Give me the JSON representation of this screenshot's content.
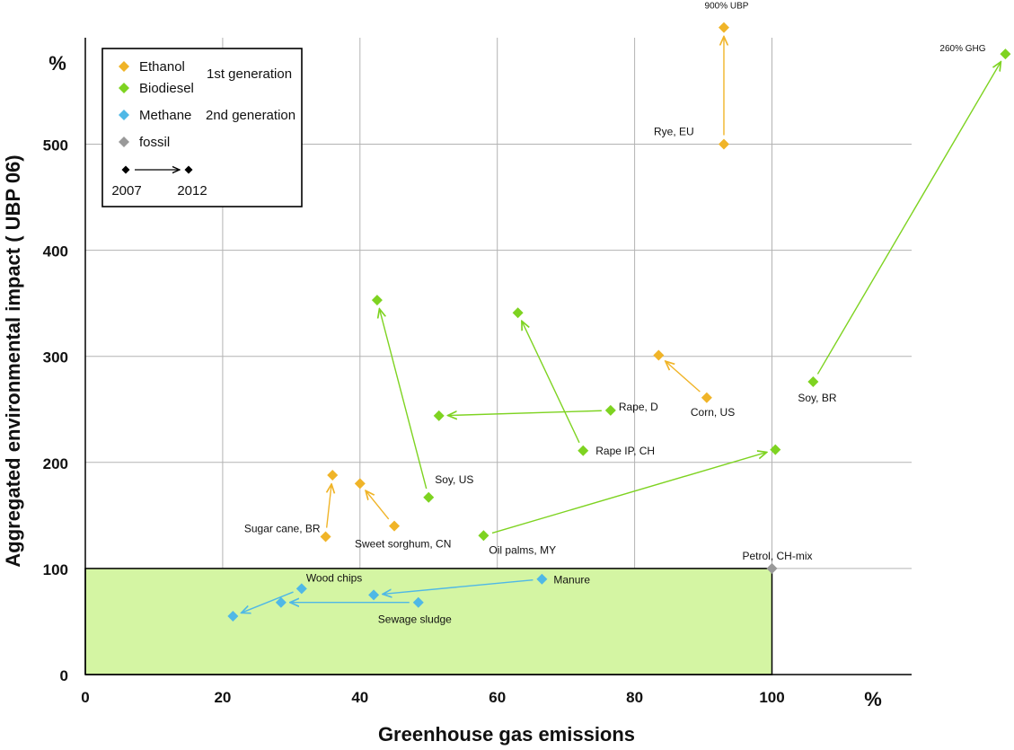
{
  "chart_data": {
    "type": "scatter",
    "xlabel": "Greenhouse gas emissions",
    "ylabel": "Aggregated environmental impact ( UBP 06)",
    "x_unit": "%",
    "y_unit": "%",
    "xlim": [
      0,
      120
    ],
    "ylim": [
      0,
      600
    ],
    "x_ticks": [
      "0",
      "20",
      "40",
      "60",
      "80",
      "100"
    ],
    "y_ticks": [
      "0",
      "100",
      "200",
      "300",
      "400",
      "500"
    ],
    "grid": true,
    "legend": {
      "position": "top-left",
      "entries": [
        {
          "name": "Ethanol",
          "color": "#f0b428"
        },
        {
          "name": "Biodiesel",
          "color": "#7ed321"
        },
        {
          "name": "Methane",
          "color": "#4fb8e6"
        },
        {
          "name": "fossil",
          "color": "#999999"
        }
      ],
      "groups": [
        "1st generation",
        "2nd generation"
      ],
      "arrow_from": "2007",
      "arrow_to": "2012"
    },
    "shaded_region": {
      "x": [
        0,
        100
      ],
      "y": [
        0,
        100
      ],
      "color": "#d4f5a3"
    },
    "series": [
      {
        "name": "Ethanol",
        "color": "#f0b428",
        "changes": [
          {
            "label": "Rye, EU",
            "from": [
              93,
              500
            ],
            "to": [
              93,
              610
            ],
            "annotation": "900% UBP"
          },
          {
            "label": "Corn, US",
            "from": [
              90.5,
              261
            ],
            "to": [
              83.5,
              301
            ]
          },
          {
            "label": "Sugar cane, BR",
            "from": [
              35,
              130
            ],
            "to": [
              36,
              188
            ]
          },
          {
            "label": "Sweet sorghum, CN",
            "from": [
              45,
              140
            ],
            "to": [
              40,
              180
            ]
          }
        ]
      },
      {
        "name": "Biodiesel",
        "color": "#7ed321",
        "changes": [
          {
            "label": "Soy, BR",
            "from": [
              106,
              276
            ],
            "to": [
              134,
              585
            ],
            "annotation": "260% GHG"
          },
          {
            "label": "Soy, US",
            "from": [
              50,
              167
            ],
            "to": [
              42.5,
              353
            ]
          },
          {
            "label": "Rape IP, CH",
            "from": [
              72.5,
              211
            ],
            "to": [
              63,
              341
            ]
          },
          {
            "label": "Rape, D",
            "from": [
              76.5,
              249
            ],
            "to": [
              51.5,
              244
            ]
          },
          {
            "label": "Oil palms, MY",
            "from": [
              58,
              131
            ],
            "to": [
              100.5,
              212
            ]
          }
        ]
      },
      {
        "name": "Methane",
        "color": "#4fb8e6",
        "changes": [
          {
            "label": "Wood chips",
            "from": [
              31.5,
              81
            ],
            "to": [
              21.5,
              55
            ]
          },
          {
            "label": "Manure",
            "from": [
              66.5,
              90
            ],
            "to": [
              42,
              75
            ]
          },
          {
            "label": "Sewage sludge",
            "from": [
              48.5,
              68
            ],
            "to": [
              28.5,
              68
            ]
          }
        ]
      },
      {
        "name": "fossil",
        "color": "#999999",
        "points": [
          {
            "label": "Petrol, CH-mix",
            "x": 100,
            "y": 100
          }
        ]
      }
    ]
  }
}
